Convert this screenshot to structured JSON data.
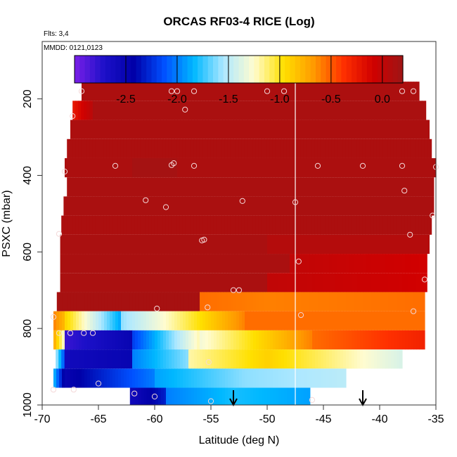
{
  "chart_data": {
    "type": "heatmap",
    "title": "ORCAS RF03-4 RICE (Log)",
    "flights_note": "Flts: 3,4",
    "date_note": "MMDD: 0121,0123",
    "xlabel": "Latitude (deg N)",
    "ylabel": "PSXC (mbar)",
    "xlim": [
      -70,
      -35
    ],
    "ylim": [
      1000,
      50
    ],
    "x_ticks": [
      -70,
      -65,
      -60,
      -55,
      -50,
      -45,
      -40,
      -35
    ],
    "x_tick_labels": [
      "-70",
      "-65",
      "-60",
      "-55",
      "-50",
      "-45",
      "-40",
      "-35"
    ],
    "y_ticks": [
      200,
      400,
      600,
      800,
      1000
    ],
    "y_tick_labels": [
      "200",
      "400",
      "600",
      "800",
      "1000"
    ],
    "colorbar": {
      "range": [
        -3.0,
        0.2
      ],
      "ticks": [
        -2.5,
        -2.0,
        -1.5,
        -1.0,
        -0.5,
        0.0
      ],
      "tick_labels": [
        "-2.5",
        "-2.0",
        "-1.5",
        "-1.0",
        "-0.5",
        "0.0"
      ],
      "colors": [
        "#7a1fe8",
        "#1c10c8",
        "#0000a8",
        "#0050ff",
        "#00b8ff",
        "#aee8ff",
        "#fffcd0",
        "#ffe000",
        "#ff9a00",
        "#ff3000",
        "#d00000",
        "#9e1515"
      ]
    },
    "vertical_line_x": -47.5,
    "arrows_x": [
      -53,
      -41.5
    ],
    "bands": [
      {
        "p_top": 155,
        "p_bot": 205,
        "x_start": -66.5,
        "x_end": -36.5,
        "segments": [
          {
            "x0": -66.5,
            "x1": -36.5,
            "v0": 0.12,
            "v1": 0.12
          }
        ]
      },
      {
        "p_top": 205,
        "p_bot": 255,
        "x_start": -67.3,
        "x_end": -35.9,
        "segments": [
          {
            "x0": -67.3,
            "x1": -65.5,
            "v0": -0.25,
            "v1": 0.05
          },
          {
            "x0": -65.5,
            "x1": -35.9,
            "v0": 0.13,
            "v1": 0.13
          }
        ]
      },
      {
        "p_top": 255,
        "p_bot": 305,
        "x_start": -67.5,
        "x_end": -35.6,
        "segments": [
          {
            "x0": -67.5,
            "x1": -35.6,
            "v0": 0.12,
            "v1": 0.12
          }
        ]
      },
      {
        "p_top": 305,
        "p_bot": 355,
        "x_start": -67.8,
        "x_end": -35.4,
        "segments": [
          {
            "x0": -67.8,
            "x1": -35.4,
            "v0": 0.12,
            "v1": 0.12
          }
        ]
      },
      {
        "p_top": 355,
        "p_bot": 405,
        "x_start": -68.0,
        "x_end": -35.0,
        "segments": [
          {
            "x0": -68.0,
            "x1": -62.0,
            "v0": 0.12,
            "v1": 0.12
          },
          {
            "x0": -62.0,
            "x1": -58.0,
            "v0": 0.16,
            "v1": 0.16
          },
          {
            "x0": -58.0,
            "x1": -35.0,
            "v0": 0.12,
            "v1": 0.12
          }
        ]
      },
      {
        "p_top": 405,
        "p_bot": 455,
        "x_start": -67.8,
        "x_end": -35.2,
        "segments": [
          {
            "x0": -67.8,
            "x1": -35.2,
            "v0": 0.13,
            "v1": 0.13
          }
        ]
      },
      {
        "p_top": 455,
        "p_bot": 505,
        "x_start": -68.1,
        "x_end": -35.2,
        "segments": [
          {
            "x0": -68.1,
            "x1": -35.2,
            "v0": 0.13,
            "v1": 0.13
          }
        ]
      },
      {
        "p_top": 505,
        "p_bot": 555,
        "x_start": -68.3,
        "x_end": -35.4,
        "segments": [
          {
            "x0": -68.3,
            "x1": -35.4,
            "v0": 0.12,
            "v1": 0.12
          }
        ]
      },
      {
        "p_top": 555,
        "p_bot": 605,
        "x_start": -68.4,
        "x_end": -35.6,
        "segments": [
          {
            "x0": -68.4,
            "x1": -50.0,
            "v0": 0.13,
            "v1": 0.13
          },
          {
            "x0": -50.0,
            "x1": -35.6,
            "v0": 0.07,
            "v1": 0.07
          }
        ]
      },
      {
        "p_top": 605,
        "p_bot": 655,
        "x_start": -68.4,
        "x_end": -35.8,
        "segments": [
          {
            "x0": -68.4,
            "x1": -48.0,
            "v0": 0.13,
            "v1": 0.13
          },
          {
            "x0": -48.0,
            "x1": -35.8,
            "v0": 0.0,
            "v1": -0.1
          }
        ]
      },
      {
        "p_top": 655,
        "p_bot": 705,
        "x_start": -68.4,
        "x_end": -35.8,
        "segments": [
          {
            "x0": -68.4,
            "x1": -50.0,
            "v0": 0.13,
            "v1": 0.13
          },
          {
            "x0": -50.0,
            "x1": -35.8,
            "v0": 0.0,
            "v1": -0.1
          }
        ]
      },
      {
        "p_top": 705,
        "p_bot": 755,
        "x_start": -68.7,
        "x_end": -36.0,
        "segments": [
          {
            "x0": -68.7,
            "x1": -56.0,
            "v0": 0.15,
            "v1": 0.15
          },
          {
            "x0": -56.0,
            "x1": -50.0,
            "v0": -0.55,
            "v1": -0.6
          },
          {
            "x0": -50.0,
            "x1": -36.0,
            "v0": -0.6,
            "v1": -0.55
          }
        ]
      },
      {
        "p_top": 755,
        "p_bot": 805,
        "x_start": -69.0,
        "x_end": -36.0,
        "segments": [
          {
            "x0": -69.0,
            "x1": -68.0,
            "v0": -0.6,
            "v1": -0.8
          },
          {
            "x0": -68.0,
            "x1": -63.0,
            "v0": -0.9,
            "v1": -1.9
          },
          {
            "x0": -63.0,
            "x1": -58.5,
            "v0": -1.6,
            "v1": -1.2
          },
          {
            "x0": -58.5,
            "x1": -52.0,
            "v0": -1.2,
            "v1": -0.6
          },
          {
            "x0": -52.0,
            "x1": -36.0,
            "v0": -0.55,
            "v1": -0.55
          }
        ]
      },
      {
        "p_top": 805,
        "p_bot": 855,
        "x_start": -69.0,
        "x_end": -36.0,
        "segments": [
          {
            "x0": -69.0,
            "x1": -68.0,
            "v0": -0.7,
            "v1": -1.3
          },
          {
            "x0": -68.0,
            "x1": -62.0,
            "v0": -2.8,
            "v1": -2.5
          },
          {
            "x0": -62.0,
            "x1": -56.0,
            "v0": -2.2,
            "v1": -1.2
          },
          {
            "x0": -56.0,
            "x1": -46.0,
            "v0": -1.3,
            "v1": -0.6
          },
          {
            "x0": -46.0,
            "x1": -36.0,
            "v0": -0.55,
            "v1": -0.3
          }
        ]
      },
      {
        "p_top": 855,
        "p_bot": 905,
        "x_start": -68.8,
        "x_end": -38.0,
        "segments": [
          {
            "x0": -68.8,
            "x1": -68.0,
            "v0": -1.5,
            "v1": -2.2
          },
          {
            "x0": -68.0,
            "x1": -62.0,
            "v0": -2.6,
            "v1": -2.5
          },
          {
            "x0": -62.0,
            "x1": -57.0,
            "v0": -2.0,
            "v1": -1.6
          },
          {
            "x0": -57.0,
            "x1": -50.0,
            "v0": -1.2,
            "v1": -0.9
          },
          {
            "x0": -50.0,
            "x1": -38.0,
            "v0": -0.9,
            "v1": -1.4
          }
        ]
      },
      {
        "p_top": 905,
        "p_bot": 955,
        "x_start": -69.0,
        "x_end": -43.0,
        "segments": [
          {
            "x0": -69.0,
            "x1": -68.0,
            "v0": -1.8,
            "v1": -2.5
          },
          {
            "x0": -68.0,
            "x1": -60.0,
            "v0": -2.5,
            "v1": -2.0
          },
          {
            "x0": -60.0,
            "x1": -52.0,
            "v0": -1.9,
            "v1": -1.6
          },
          {
            "x0": -52.0,
            "x1": -43.0,
            "v0": -1.6,
            "v1": -1.5
          }
        ]
      },
      {
        "p_top": 955,
        "p_bot": 1000,
        "x_start": -62.2,
        "x_end": -46.2,
        "segments": [
          {
            "x0": -62.2,
            "x1": -59.0,
            "v0": -2.6,
            "v1": -2.3
          },
          {
            "x0": -59.0,
            "x1": -53.0,
            "v0": -2.0,
            "v1": -1.8
          },
          {
            "x0": -53.0,
            "x1": -46.2,
            "v0": -1.8,
            "v1": -1.9
          }
        ]
      }
    ],
    "points": [
      [
        -66.5,
        180
      ],
      [
        -58.5,
        180
      ],
      [
        -58.0,
        180
      ],
      [
        -56.5,
        180
      ],
      [
        -50.0,
        180
      ],
      [
        -48.5,
        180
      ],
      [
        -38.0,
        180
      ],
      [
        -37.0,
        180
      ],
      [
        -67.3,
        245
      ],
      [
        -57.3,
        228
      ],
      [
        -68.0,
        390
      ],
      [
        -63.5,
        375
      ],
      [
        -58.5,
        373
      ],
      [
        -58.3,
        368
      ],
      [
        -56.5,
        375
      ],
      [
        -45.5,
        375
      ],
      [
        -41.5,
        375
      ],
      [
        -38.0,
        375
      ],
      [
        -35.0,
        378
      ],
      [
        -60.8,
        465
      ],
      [
        -59.0,
        483
      ],
      [
        -52.2,
        467
      ],
      [
        -47.5,
        470
      ],
      [
        -37.8,
        440
      ],
      [
        -35.3,
        505
      ],
      [
        -68.5,
        553
      ],
      [
        -55.8,
        570
      ],
      [
        -55.6,
        568
      ],
      [
        -37.3,
        555
      ],
      [
        -47.2,
        625
      ],
      [
        -36.0,
        672
      ],
      [
        -53.0,
        700
      ],
      [
        -52.5,
        700
      ],
      [
        -69.0,
        770
      ],
      [
        -59.8,
        748
      ],
      [
        -55.3,
        745
      ],
      [
        -47.0,
        765
      ],
      [
        -37.0,
        755
      ],
      [
        -68.5,
        812
      ],
      [
        -67.5,
        812
      ],
      [
        -66.3,
        812
      ],
      [
        -65.5,
        812
      ],
      [
        -55.2,
        888
      ],
      [
        -69.0,
        960
      ],
      [
        -67.2,
        960
      ],
      [
        -65.0,
        944
      ],
      [
        -61.8,
        970
      ],
      [
        -60.0,
        978
      ],
      [
        -55.0,
        990
      ],
      [
        -46.0,
        987
      ]
    ]
  }
}
